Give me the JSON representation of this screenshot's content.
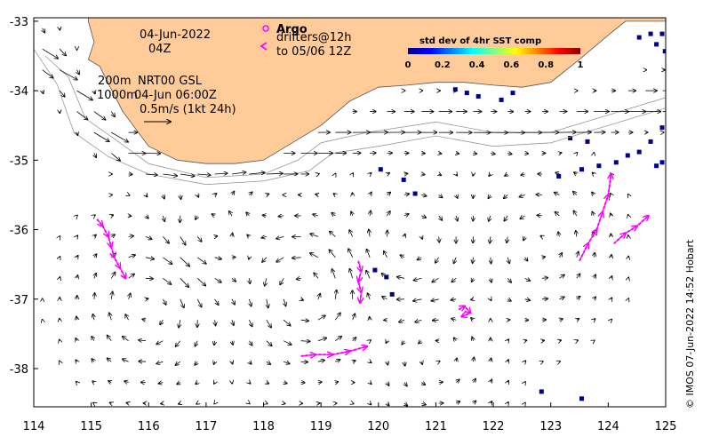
{
  "header": {
    "date": "04-Jun-2022",
    "time": "04Z",
    "argo_label": "Argo",
    "drifters_label": "drifters@12h",
    "drifters_to": "to 05/06 12Z"
  },
  "product": {
    "depth_line": "200m",
    "depth_product": "NRT00 GSL",
    "depth2_line": "1000m",
    "depth2_time": "04-Jun 06:00Z",
    "scale_label": "0.5m/s (1kt 24h)"
  },
  "colorbar": {
    "title": "std dev of 4hr SST comp",
    "ticks": [
      "0",
      "0.2",
      "0.4",
      "0.6",
      "0.8",
      "1"
    ],
    "colors": [
      "#00008b",
      "#0000ff",
      "#0080ff",
      "#00ffff",
      "#80ff80",
      "#ffff00",
      "#ff8000",
      "#ff0000",
      "#8b0000"
    ]
  },
  "credit": "© IMOS 07-Jun-2022 14:52 Hobart",
  "colors": {
    "land": "#ffcc99",
    "drifter": "#ff00ff",
    "bathy": "#999999"
  },
  "map_data": {
    "lon_range": [
      114,
      125
    ],
    "lat_range": [
      -38.55,
      -32.95
    ],
    "x_ticks": [
      "114",
      "115",
      "116",
      "117",
      "118",
      "119",
      "120",
      "121",
      "122",
      "123",
      "124",
      "125"
    ],
    "y_ticks": [
      "-33",
      "-34",
      "-35",
      "-36",
      "-37",
      "-38"
    ],
    "y_tick_values": [
      -33,
      -34,
      -35,
      -36,
      -37,
      -38
    ],
    "coast": [
      [
        114.95,
        -33.0
      ],
      [
        115.05,
        -33.3
      ],
      [
        114.95,
        -33.55
      ],
      [
        115.15,
        -33.65
      ],
      [
        115.3,
        -33.9
      ],
      [
        115.55,
        -34.3
      ],
      [
        116.0,
        -34.8
      ],
      [
        116.5,
        -35.0
      ],
      [
        117.0,
        -35.05
      ],
      [
        117.5,
        -35.05
      ],
      [
        118.0,
        -35.0
      ],
      [
        118.5,
        -34.75
      ],
      [
        119.0,
        -34.5
      ],
      [
        119.5,
        -34.15
      ],
      [
        120.0,
        -33.95
      ],
      [
        120.5,
        -33.92
      ],
      [
        121.0,
        -33.88
      ],
      [
        121.5,
        -33.88
      ],
      [
        122.0,
        -33.92
      ],
      [
        122.5,
        -33.95
      ],
      [
        123.0,
        -33.88
      ],
      [
        123.5,
        -33.55
      ],
      [
        124.0,
        -33.2
      ],
      [
        124.3,
        -33.0
      ]
    ],
    "bathy_200m": [
      [
        114.2,
        -33.5
      ],
      [
        114.6,
        -33.8
      ],
      [
        114.9,
        -34.4
      ],
      [
        115.5,
        -34.75
      ],
      [
        116.0,
        -35.05
      ],
      [
        117.0,
        -35.25
      ],
      [
        118.0,
        -35.2
      ],
      [
        118.6,
        -35.0
      ],
      [
        119.0,
        -34.75
      ],
      [
        119.8,
        -34.6
      ],
      [
        121.0,
        -34.45
      ],
      [
        122.0,
        -34.6
      ],
      [
        123.0,
        -34.6
      ],
      [
        124.0,
        -34.35
      ],
      [
        125.0,
        -34.1
      ]
    ],
    "bathy_1000m": [
      [
        114.0,
        -33.4
      ],
      [
        114.4,
        -33.9
      ],
      [
        114.7,
        -34.6
      ],
      [
        115.3,
        -34.95
      ],
      [
        116.0,
        -35.2
      ],
      [
        117.0,
        -35.35
      ],
      [
        118.0,
        -35.3
      ],
      [
        118.8,
        -35.15
      ],
      [
        119.2,
        -34.9
      ],
      [
        120.0,
        -34.8
      ],
      [
        121.0,
        -34.65
      ],
      [
        122.0,
        -34.8
      ],
      [
        123.0,
        -34.75
      ],
      [
        124.0,
        -34.5
      ],
      [
        125.0,
        -34.25
      ]
    ],
    "eddies": [
      {
        "lon": 117.0,
        "lat": -36.0,
        "r": 0.75,
        "dir": 1,
        "strength": 0.05
      },
      {
        "lon": 116.0,
        "lat": -37.1,
        "r": 0.9,
        "dir": -1,
        "strength": 0.05
      },
      {
        "lon": 118.7,
        "lat": -36.9,
        "r": 0.9,
        "dir": 1,
        "strength": 0.06
      },
      {
        "lon": 120.6,
        "lat": -36.2,
        "r": 0.8,
        "dir": -1,
        "strength": 0.04
      },
      {
        "lon": 122.8,
        "lat": -36.2,
        "r": 0.9,
        "dir": 1,
        "strength": 0.04
      },
      {
        "lon": 121.0,
        "lat": -37.8,
        "r": 0.9,
        "dir": 1,
        "strength": 0.03
      }
    ],
    "drifters": [
      [
        [
          115.1,
          -35.85
        ],
        [
          115.2,
          -35.95
        ],
        [
          115.3,
          -36.1
        ],
        [
          115.35,
          -36.25
        ],
        [
          115.4,
          -36.4
        ],
        [
          115.5,
          -36.55
        ],
        [
          115.6,
          -36.7
        ]
      ],
      [
        [
          119.65,
          -36.45
        ],
        [
          119.7,
          -36.6
        ],
        [
          119.65,
          -36.75
        ],
        [
          119.7,
          -36.9
        ],
        [
          119.68,
          -37.05
        ]
      ],
      [
        [
          121.4,
          -37.15
        ],
        [
          121.5,
          -37.1
        ],
        [
          121.6,
          -37.2
        ],
        [
          121.45,
          -37.25
        ]
      ],
      [
        [
          118.65,
          -37.82
        ],
        [
          118.9,
          -37.8
        ],
        [
          119.2,
          -37.8
        ],
        [
          119.5,
          -37.75
        ],
        [
          119.8,
          -37.68
        ]
      ],
      [
        [
          123.5,
          -36.45
        ],
        [
          123.65,
          -36.2
        ],
        [
          123.8,
          -36.0
        ],
        [
          123.9,
          -35.75
        ],
        [
          124.0,
          -35.5
        ],
        [
          124.05,
          -35.2
        ]
      ],
      [
        [
          124.1,
          -36.2
        ],
        [
          124.3,
          -36.05
        ],
        [
          124.5,
          -35.95
        ],
        [
          124.7,
          -35.8
        ]
      ]
    ],
    "sst_patches": [
      [
        124.5,
        -33.2
      ],
      [
        124.7,
        -33.15
      ],
      [
        124.9,
        -33.15
      ],
      [
        124.8,
        -33.3
      ],
      [
        124.95,
        -33.4
      ],
      [
        124.9,
        -34.5
      ],
      [
        124.7,
        -34.7
      ],
      [
        124.5,
        -34.85
      ],
      [
        124.3,
        -34.9
      ],
      [
        124.1,
        -35.0
      ],
      [
        123.8,
        -35.05
      ],
      [
        123.5,
        -35.1
      ],
      [
        123.1,
        -35.2
      ],
      [
        124.9,
        -35.0
      ],
      [
        124.8,
        -35.05
      ],
      [
        120.0,
        -35.1
      ],
      [
        120.4,
        -35.25
      ],
      [
        120.6,
        -35.45
      ],
      [
        119.9,
        -36.55
      ],
      [
        120.1,
        -36.65
      ],
      [
        121.3,
        -33.95
      ],
      [
        121.5,
        -34.0
      ],
      [
        121.7,
        -34.05
      ],
      [
        122.3,
        -34.0
      ],
      [
        122.1,
        -34.1
      ],
      [
        123.6,
        -34.7
      ],
      [
        123.3,
        -34.65
      ],
      [
        122.8,
        -38.3
      ],
      [
        123.5,
        -38.4
      ],
      [
        120.2,
        -36.9
      ]
    ]
  }
}
